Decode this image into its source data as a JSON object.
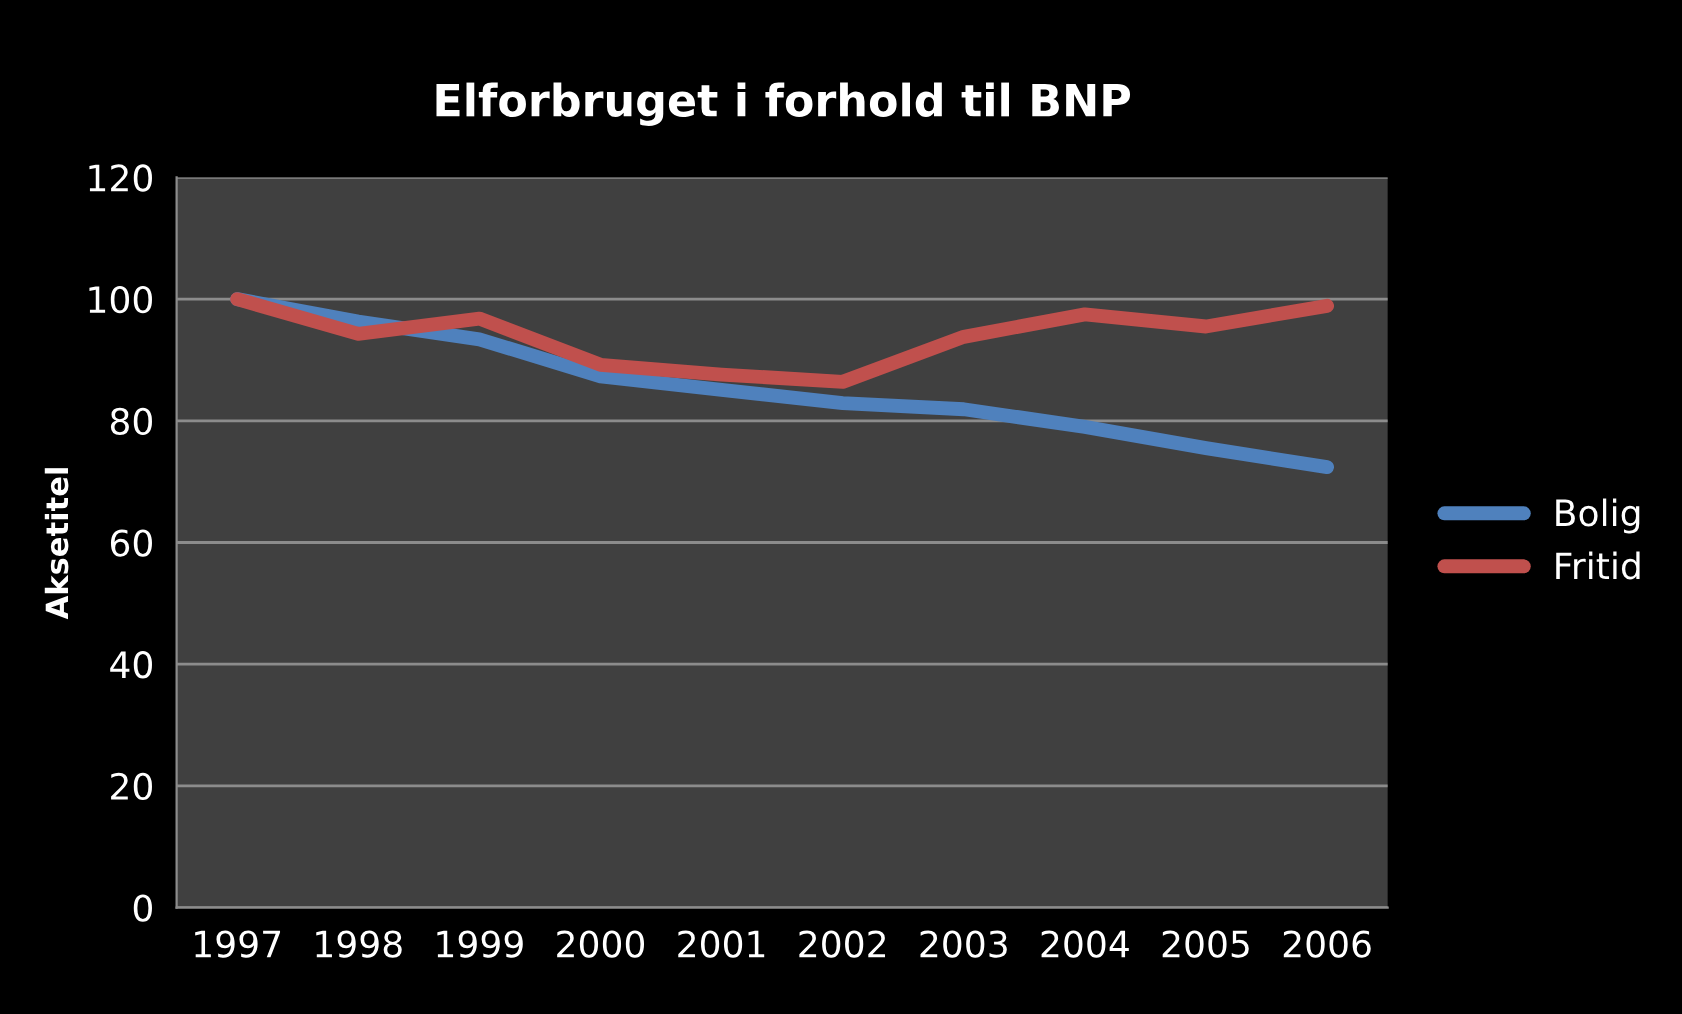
{
  "chart_data": {
    "type": "line",
    "title": "Elforbruget i forhold til BNP",
    "ylabel": "Aksetitel",
    "categories": [
      "1997",
      "1998",
      "1999",
      "2000",
      "2001",
      "2002",
      "2003",
      "2004",
      "2005",
      "2006"
    ],
    "series": [
      {
        "name": "Bolig",
        "color": "#4f81bd",
        "values": [
          100,
          96.3,
          93.4,
          87.3,
          85.1,
          82.9,
          81.9,
          79,
          75.5,
          72.4
        ]
      },
      {
        "name": "Fritid",
        "color": "#c0504d",
        "values": [
          100,
          94.3,
          96.8,
          89.2,
          87.6,
          86.4,
          93.8,
          97.5,
          95.5,
          98.9
        ]
      }
    ],
    "ylim": [
      0,
      120
    ],
    "yticks": [
      0,
      20,
      40,
      60,
      80,
      100,
      120
    ],
    "grid": "y",
    "legend": "right",
    "marker": "none",
    "line_style": "solid"
  }
}
